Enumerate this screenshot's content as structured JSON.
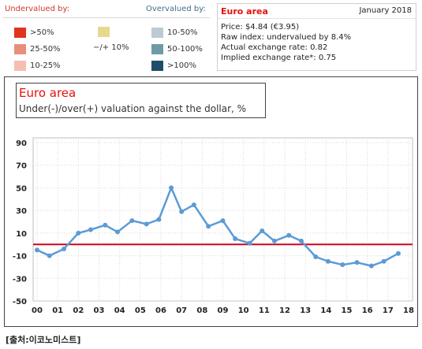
{
  "legend": {
    "undervalued_heading": "Undervalued by:",
    "overvalued_heading": "Overvalued by:",
    "neutral_label": "−/+ 10%",
    "neutral_color": "#e6d98d",
    "undervalued": [
      {
        "label": ">50%",
        "color": "#e0341d"
      },
      {
        "label": "25-50%",
        "color": "#e88f7b"
      },
      {
        "label": "10-25%",
        "color": "#f4bfb2"
      }
    ],
    "overvalued": [
      {
        "label": "10-50%",
        "color": "#bccad3"
      },
      {
        "label": "50-100%",
        "color": "#6f9ba7"
      },
      {
        "label": ">100%",
        "color": "#1e4e6b"
      }
    ]
  },
  "info": {
    "area": "Euro area",
    "date": "January 2018",
    "price": "Price: $4.84 (€3.95)",
    "raw_index": "Raw index: undervalued by 8.4%",
    "actual_rate": "Actual exchange rate: 0.82",
    "implied_rate": "Implied exchange rate*: 0.75"
  },
  "chart_data": {
    "type": "line",
    "title": "Euro area",
    "subtitle": "Under(-)/over(+) valuation against the dollar, %",
    "ylim": [
      -50,
      90
    ],
    "xlim": [
      2000,
      2018
    ],
    "yticks": [
      90,
      70,
      50,
      30,
      10,
      -10,
      -30,
      -50
    ],
    "ytick_labels": [
      "90",
      "70",
      "50",
      "30",
      "10",
      "-10",
      "-30",
      "-50"
    ],
    "xticks": [
      {
        "label": "00",
        "x": 2000
      },
      {
        "label": "01",
        "x": 2001
      },
      {
        "label": "02",
        "x": 2002
      },
      {
        "label": "03",
        "x": 2003
      },
      {
        "label": "04",
        "x": 2004
      },
      {
        "label": "05",
        "x": 2005
      },
      {
        "label": "06",
        "x": 2006
      },
      {
        "label": "07",
        "x": 2007
      },
      {
        "label": "08",
        "x": 2008
      },
      {
        "label": "09",
        "x": 2009
      },
      {
        "label": "10",
        "x": 2010
      },
      {
        "label": "11",
        "x": 2011
      },
      {
        "label": "12",
        "x": 2012
      },
      {
        "label": "13",
        "x": 2013
      },
      {
        "label": "14",
        "x": 2014
      },
      {
        "label": "15",
        "x": 2015
      },
      {
        "label": "16",
        "x": 2016
      },
      {
        "label": "17",
        "x": 2017
      },
      {
        "label": "18",
        "x": 2018
      }
    ],
    "reference_line": {
      "value": 0,
      "color": "#d0021b"
    },
    "line_color": "#5b9bd5",
    "grid": true,
    "points": [
      {
        "x": 2000.0,
        "y": -5
      },
      {
        "x": 2000.6,
        "y": -10
      },
      {
        "x": 2001.3,
        "y": -4
      },
      {
        "x": 2002.0,
        "y": 10
      },
      {
        "x": 2002.6,
        "y": 13
      },
      {
        "x": 2003.3,
        "y": 17
      },
      {
        "x": 2003.9,
        "y": 11
      },
      {
        "x": 2004.6,
        "y": 21
      },
      {
        "x": 2005.3,
        "y": 18
      },
      {
        "x": 2005.9,
        "y": 22
      },
      {
        "x": 2006.5,
        "y": 50
      },
      {
        "x": 2007.0,
        "y": 29
      },
      {
        "x": 2007.6,
        "y": 35
      },
      {
        "x": 2008.3,
        "y": 16
      },
      {
        "x": 2009.0,
        "y": 21
      },
      {
        "x": 2009.6,
        "y": 5
      },
      {
        "x": 2010.3,
        "y": 1
      },
      {
        "x": 2010.9,
        "y": 12
      },
      {
        "x": 2011.5,
        "y": 3
      },
      {
        "x": 2012.2,
        "y": 8
      },
      {
        "x": 2012.8,
        "y": 3
      },
      {
        "x": 2013.5,
        "y": -11
      },
      {
        "x": 2014.1,
        "y": -15
      },
      {
        "x": 2014.8,
        "y": -18
      },
      {
        "x": 2015.5,
        "y": -16
      },
      {
        "x": 2016.2,
        "y": -19
      },
      {
        "x": 2016.8,
        "y": -15
      },
      {
        "x": 2017.5,
        "y": -8
      }
    ]
  },
  "source": "[출처:이코노미스트]"
}
